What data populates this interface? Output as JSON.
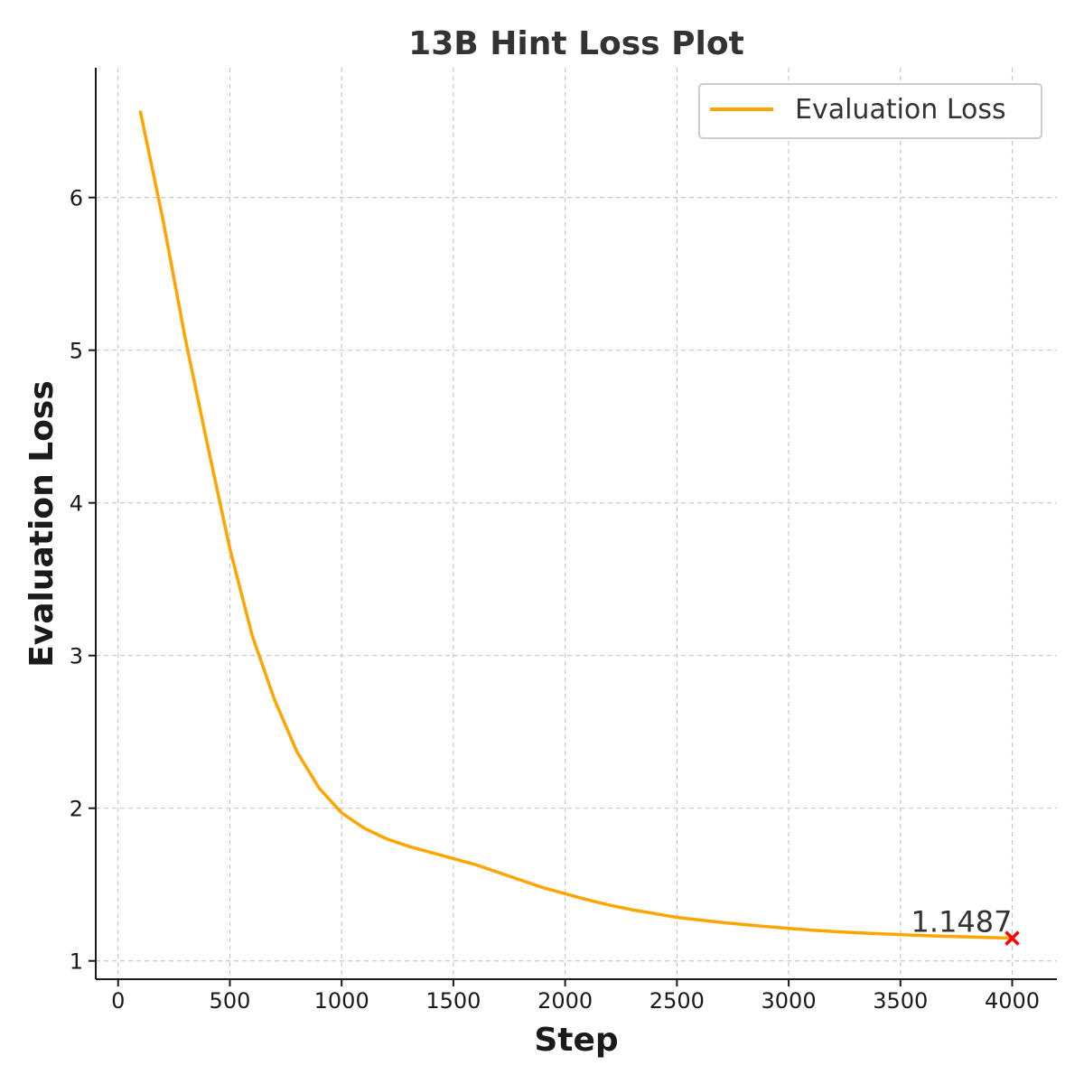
{
  "chart_data": {
    "type": "line",
    "title": "13B Hint Loss Plot",
    "xlabel": "Step",
    "ylabel": "Evaluation Loss",
    "xlim": [
      -100,
      4200
    ],
    "ylim": [
      0.88,
      6.85
    ],
    "xticks": [
      0,
      500,
      1000,
      1500,
      2000,
      2500,
      3000,
      3500,
      4000
    ],
    "yticks": [
      1,
      2,
      3,
      4,
      5,
      6
    ],
    "grid": true,
    "legend_position": "top-right",
    "series": [
      {
        "name": "Evaluation Loss",
        "color": "#FFA500",
        "x": [
          100,
          200,
          300,
          400,
          500,
          600,
          700,
          800,
          900,
          1000,
          1100,
          1200,
          1300,
          1400,
          1500,
          1600,
          1700,
          1800,
          1900,
          2000,
          2100,
          2200,
          2300,
          2400,
          2500,
          2600,
          2700,
          2800,
          2900,
          3000,
          3100,
          3200,
          3300,
          3400,
          3500,
          3600,
          3700,
          3800,
          3900,
          4000
        ],
        "y": [
          6.56,
          5.86,
          5.08,
          4.38,
          3.7,
          3.13,
          2.71,
          2.37,
          2.13,
          1.97,
          1.87,
          1.8,
          1.75,
          1.71,
          1.67,
          1.63,
          1.58,
          1.53,
          1.48,
          1.44,
          1.4,
          1.365,
          1.335,
          1.31,
          1.285,
          1.268,
          1.252,
          1.238,
          1.225,
          1.213,
          1.202,
          1.193,
          1.185,
          1.178,
          1.172,
          1.166,
          1.161,
          1.157,
          1.153,
          1.1487
        ]
      }
    ],
    "annotations": [
      {
        "text": "1.1487",
        "x": 4000,
        "y": 1.1487,
        "marker": "x",
        "marker_color": "#FF0000"
      }
    ]
  }
}
